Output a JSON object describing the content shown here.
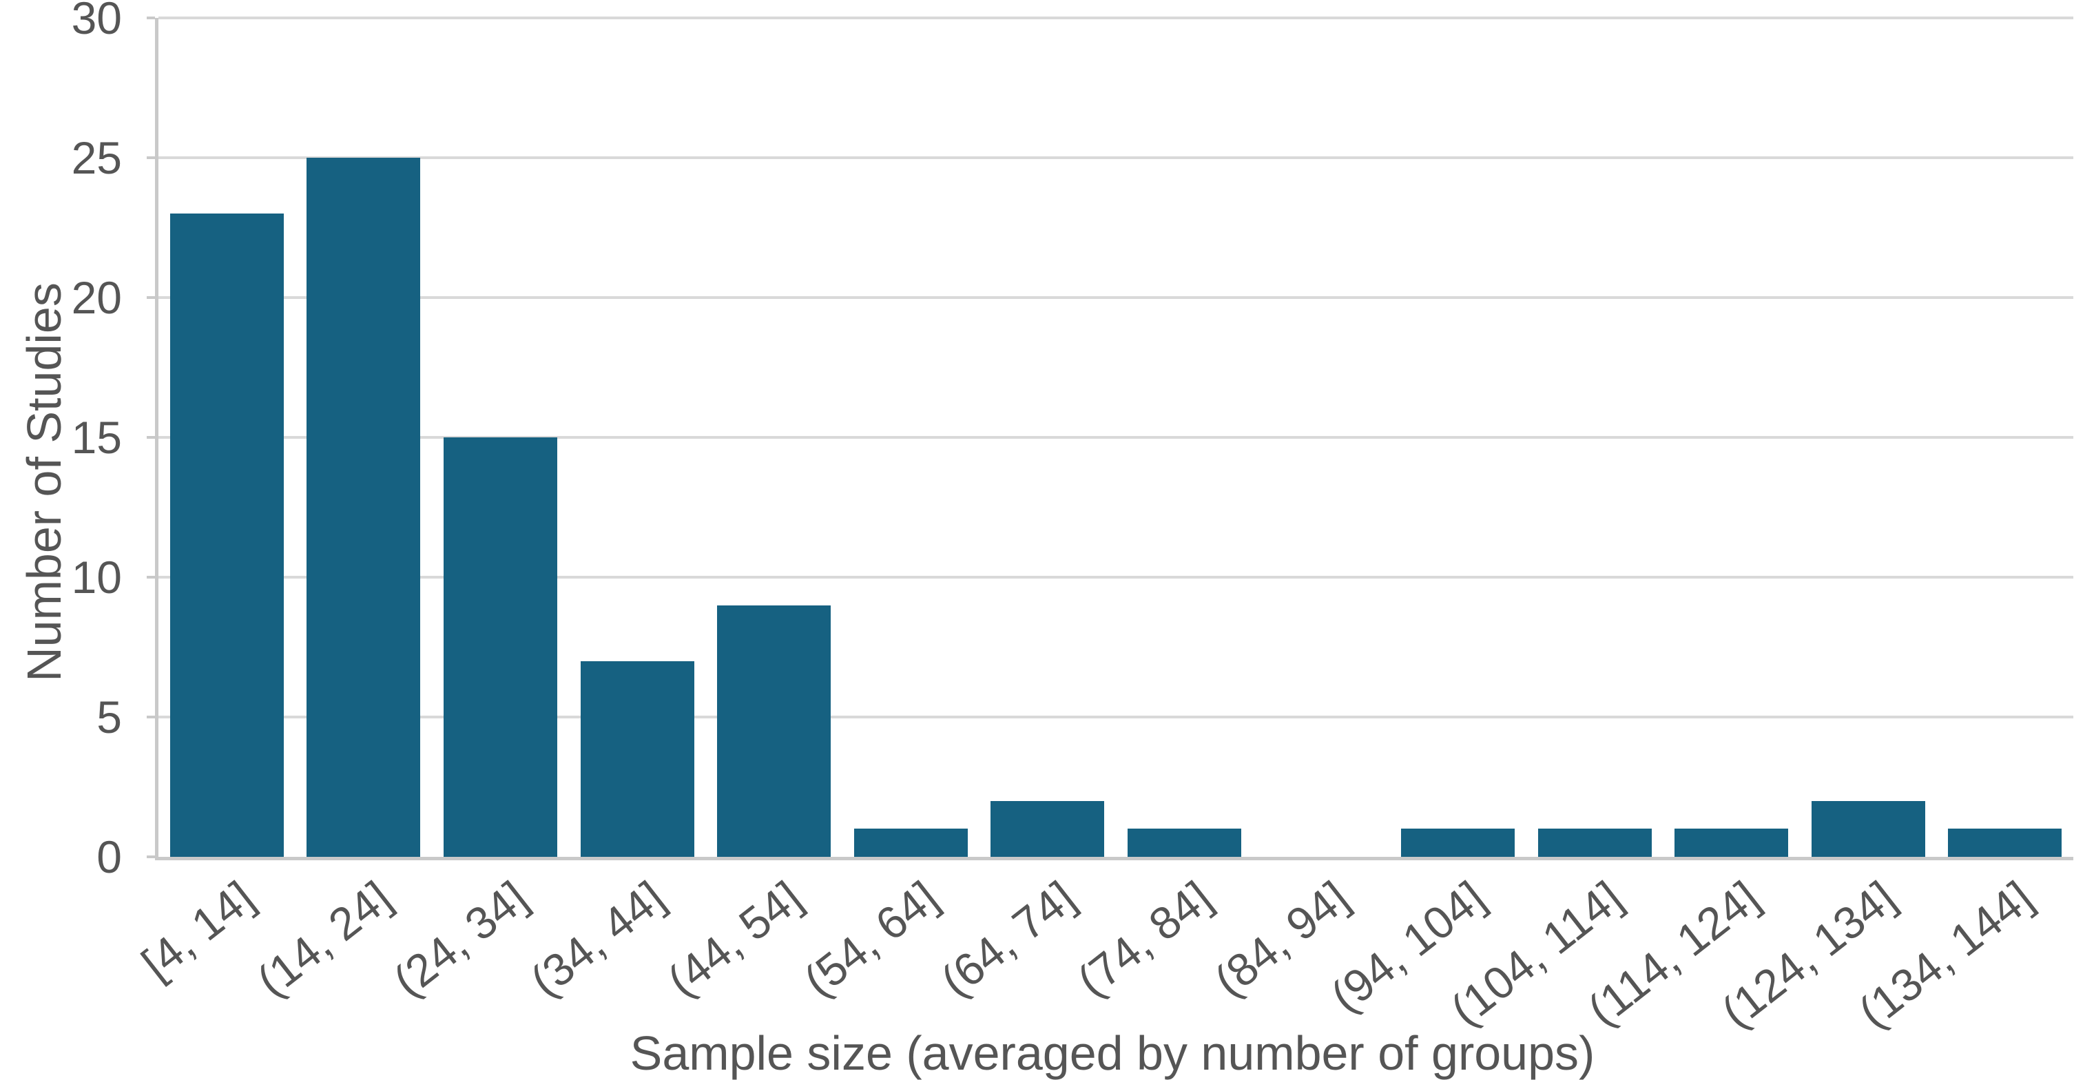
{
  "chart_data": {
    "type": "bar",
    "title": "",
    "categories": [
      "[4, 14]",
      "(14, 24]",
      "(24, 34]",
      "(34, 44]",
      "(44, 54]",
      "(54, 64]",
      "(64, 74]",
      "(74, 84]",
      "(84, 94]",
      "(94, 104]",
      "(104, 114]",
      "(114, 124]",
      "(124, 134]",
      "(134, 144]"
    ],
    "values": [
      23,
      25,
      15,
      7,
      9,
      1,
      2,
      1,
      0,
      1,
      1,
      1,
      2,
      1
    ],
    "xlabel": "Sample size (averaged by number of groups)",
    "ylabel": "Number of Studies",
    "ylim": [
      0,
      30
    ],
    "yticks": [
      0,
      5,
      10,
      15,
      20,
      25,
      30
    ],
    "grid": "horizontal",
    "legend": "none",
    "x_label_rotation_deg": -38,
    "colors": {
      "bar": "#166181",
      "gridline": "#D9D9D9",
      "axis_line": "#C9C9C9",
      "text": "#555555",
      "background": "#FFFFFF"
    }
  }
}
